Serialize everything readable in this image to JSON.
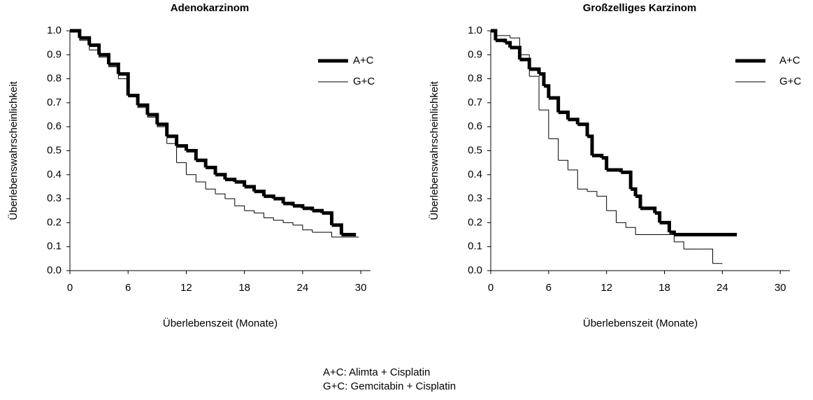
{
  "chart_data": [
    {
      "type": "step",
      "title": "Adenokarzinom",
      "x_label": "Überlebenszeit (Monate)",
      "y_label": "Überlebenswahrscheinlichkeit",
      "xlim": [
        0,
        31
      ],
      "ylim": [
        0,
        1
      ],
      "xticks": [
        0,
        6,
        12,
        18,
        24,
        30
      ],
      "yticks": [
        {
          "value": 0,
          "label": "0.0"
        },
        {
          "value": 0.1,
          "label": "0.1"
        },
        {
          "value": 0.2,
          "label": "0.2"
        },
        {
          "value": 0.3,
          "label": "0.3"
        },
        {
          "value": 0.4,
          "label": "0.4"
        },
        {
          "value": 0.5,
          "label": "0.5"
        },
        {
          "value": 0.6,
          "label": "0.6"
        },
        {
          "value": 0.7,
          "label": "0.7"
        },
        {
          "value": 0.8,
          "label": "0.8"
        },
        {
          "value": 0.9,
          "label": "0.9"
        },
        {
          "value": 1,
          "label": "1.0"
        }
      ],
      "series": [
        {
          "name": "A+C",
          "color": "#000000",
          "width": 5,
          "x": [
            0,
            1,
            2,
            3,
            4,
            5,
            6,
            7,
            8,
            9,
            10,
            11,
            12,
            13,
            14,
            15,
            16,
            17,
            18,
            19,
            20,
            21,
            22,
            23,
            24,
            25,
            26,
            27,
            28,
            29.5
          ],
          "values": [
            1.0,
            0.97,
            0.94,
            0.9,
            0.86,
            0.82,
            0.73,
            0.69,
            0.65,
            0.61,
            0.56,
            0.52,
            0.5,
            0.46,
            0.43,
            0.4,
            0.38,
            0.37,
            0.35,
            0.33,
            0.31,
            0.3,
            0.28,
            0.27,
            0.26,
            0.25,
            0.24,
            0.19,
            0.15,
            0.15
          ]
        },
        {
          "name": "G+C",
          "color": "#000000",
          "width": 1,
          "x": [
            0,
            1,
            2,
            3,
            4,
            5,
            6,
            7,
            8,
            9,
            10,
            11,
            12,
            13,
            14,
            15,
            16,
            17,
            18,
            19,
            20,
            21,
            22,
            23,
            24,
            25,
            27,
            29.8
          ],
          "values": [
            1.0,
            0.96,
            0.92,
            0.89,
            0.85,
            0.8,
            0.73,
            0.68,
            0.64,
            0.6,
            0.53,
            0.45,
            0.4,
            0.37,
            0.34,
            0.32,
            0.3,
            0.27,
            0.25,
            0.24,
            0.22,
            0.21,
            0.2,
            0.19,
            0.17,
            0.16,
            0.14,
            0.14
          ]
        }
      ]
    },
    {
      "type": "step",
      "title": "Großzelliges Karzinom",
      "x_label": "Überlebenszeit (Monate)",
      "y_label": "Überlebenswahrscheinlichkeit",
      "xlim": [
        0,
        31
      ],
      "ylim": [
        0,
        1
      ],
      "xticks": [
        0,
        6,
        12,
        18,
        24,
        30
      ],
      "yticks": [
        {
          "value": 0,
          "label": "0.0"
        },
        {
          "value": 0.1,
          "label": "0.1"
        },
        {
          "value": 0.2,
          "label": "0.2"
        },
        {
          "value": 0.3,
          "label": "0.3"
        },
        {
          "value": 0.4,
          "label": "0.4"
        },
        {
          "value": 0.5,
          "label": "0.5"
        },
        {
          "value": 0.6,
          "label": "0.6"
        },
        {
          "value": 0.7,
          "label": "0.7"
        },
        {
          "value": 0.8,
          "label": "0.8"
        },
        {
          "value": 0.9,
          "label": "0.9"
        },
        {
          "value": 1,
          "label": "1.0"
        }
      ],
      "series": [
        {
          "name": "A+C",
          "color": "#000000",
          "width": 5,
          "x": [
            0,
            0.5,
            1.5,
            2,
            3,
            4,
            5,
            5.5,
            6,
            7,
            8,
            9,
            10,
            10.5,
            11.5,
            12,
            13.5,
            14.5,
            15,
            15.5,
            17,
            17.5,
            18.5,
            19,
            25.5
          ],
          "values": [
            1.0,
            0.96,
            0.95,
            0.93,
            0.88,
            0.84,
            0.82,
            0.77,
            0.72,
            0.66,
            0.63,
            0.61,
            0.56,
            0.48,
            0.47,
            0.42,
            0.41,
            0.34,
            0.31,
            0.26,
            0.24,
            0.2,
            0.16,
            0.15,
            0.15
          ]
        },
        {
          "name": "G+C",
          "color": "#000000",
          "width": 1,
          "x": [
            0,
            0.5,
            2,
            3,
            4,
            5,
            6,
            7,
            8,
            9,
            10,
            11,
            12,
            13,
            14,
            15,
            18,
            19,
            20,
            22,
            23,
            24
          ],
          "values": [
            1.0,
            0.98,
            0.97,
            0.9,
            0.81,
            0.67,
            0.55,
            0.46,
            0.42,
            0.34,
            0.33,
            0.31,
            0.25,
            0.2,
            0.18,
            0.15,
            0.15,
            0.12,
            0.09,
            0.09,
            0.03,
            0.03
          ]
        }
      ]
    }
  ],
  "notes": [
    "A+C: Alimta + Cisplatin",
    "G+C: Gemcitabin + Cisplatin"
  ]
}
